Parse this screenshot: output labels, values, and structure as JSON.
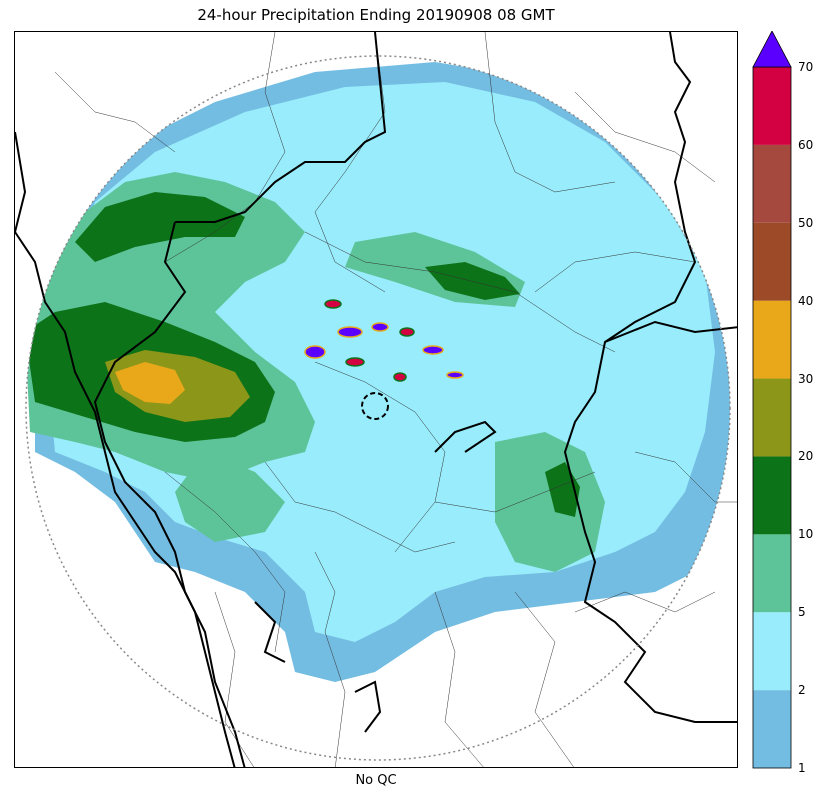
{
  "title": "24-hour Precipitation Ending 20190908 08 GMT",
  "xlabel": "No QC",
  "colors": {
    "c1_2": "#74bde2",
    "c2_5": "#98ecfb",
    "c5_10": "#5dc49a",
    "c10_20": "#0d7319",
    "c20_30": "#8c9618",
    "c30_40": "#e8a81a",
    "c40_50": "#9c4a28",
    "c50_60": "#a5493f",
    "c60_70": "#d30042",
    "over": "#5a00ff"
  },
  "colorbar": {
    "ticks": [
      "1",
      "2",
      "5",
      "10",
      "20",
      "30",
      "40",
      "50",
      "60",
      "70"
    ],
    "extend": "max"
  },
  "map": {
    "radar_range_ring": "dotted",
    "radar_site_marker": "dashed circle",
    "boundaries": [
      "coastline",
      "state borders",
      "district borders"
    ]
  }
}
